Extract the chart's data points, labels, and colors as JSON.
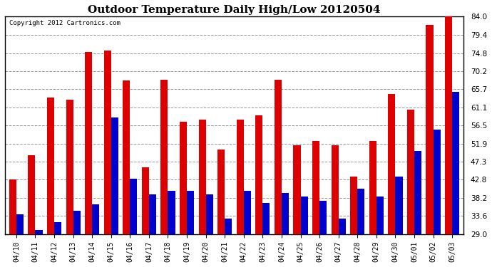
{
  "title": "Outdoor Temperature Daily High/Low 20120504",
  "copyright": "Copyright 2012 Cartronics.com",
  "categories": [
    "04/10",
    "04/11",
    "04/12",
    "04/13",
    "04/14",
    "04/15",
    "04/16",
    "04/17",
    "04/18",
    "04/19",
    "04/20",
    "04/21",
    "04/22",
    "04/23",
    "04/24",
    "04/25",
    "04/26",
    "04/27",
    "04/28",
    "04/29",
    "04/30",
    "05/01",
    "05/02",
    "05/03"
  ],
  "highs": [
    42.8,
    49.0,
    63.5,
    63.0,
    75.0,
    75.5,
    67.8,
    46.0,
    68.0,
    57.5,
    58.0,
    50.5,
    58.0,
    59.0,
    68.0,
    51.5,
    52.5,
    51.5,
    43.5,
    52.5,
    64.5,
    60.5,
    82.0,
    84.0
  ],
  "lows": [
    34.0,
    30.0,
    32.0,
    35.0,
    36.5,
    58.5,
    43.0,
    39.0,
    40.0,
    40.0,
    39.0,
    33.0,
    40.0,
    37.0,
    39.5,
    38.5,
    37.5,
    33.0,
    40.5,
    38.5,
    43.5,
    50.0,
    55.5,
    65.0
  ],
  "high_color": "#dd0000",
  "low_color": "#0000cc",
  "background_color": "#ffffff",
  "plot_bg_color": "#ffffff",
  "grid_color": "#999999",
  "title_fontsize": 11,
  "ylabel_right": [
    "29.0",
    "33.6",
    "38.2",
    "42.8",
    "47.3",
    "51.9",
    "56.5",
    "61.1",
    "65.7",
    "70.2",
    "74.8",
    "79.4",
    "84.0"
  ],
  "yticks": [
    29.0,
    33.6,
    38.2,
    42.8,
    47.3,
    51.9,
    56.5,
    61.1,
    65.7,
    70.2,
    74.8,
    79.4,
    84.0
  ],
  "ymin": 29.0,
  "ymax": 84.0
}
